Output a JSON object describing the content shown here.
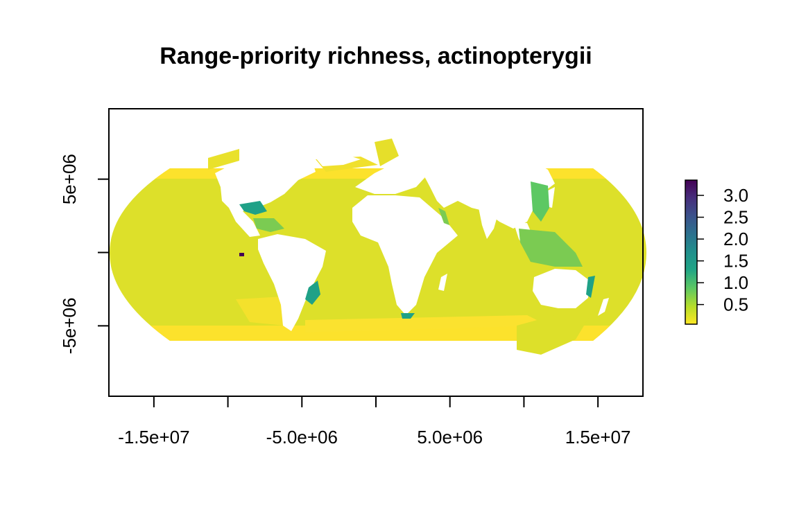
{
  "chart_data": {
    "type": "heatmap",
    "title": "Range-priority richness, actinopterygii",
    "xlabel": "",
    "ylabel": "",
    "x_ticks": [
      {
        "value": -15000000,
        "label": "-1.5e+07"
      },
      {
        "value": -10000000,
        "label": ""
      },
      {
        "value": -5000000,
        "label": "-5.0e+06"
      },
      {
        "value": 0,
        "label": ""
      },
      {
        "value": 5000000,
        "label": "5.0e+06"
      },
      {
        "value": 10000000,
        "label": ""
      },
      {
        "value": 15000000,
        "label": "1.5e+07"
      }
    ],
    "y_ticks": [
      {
        "value": 5000000,
        "label": "5e+06"
      },
      {
        "value": 0,
        "label": ""
      },
      {
        "value": -5000000,
        "label": "-5e+06"
      }
    ],
    "xlim": [
      -18040000,
      18040000
    ],
    "ylim": [
      -9800000,
      9800000
    ],
    "projection_extent_x": [
      -18040000,
      18040000
    ],
    "projection_extent_y": [
      -8400000,
      8400000
    ],
    "legend": {
      "position": "right",
      "range": [
        0.05,
        3.35
      ],
      "ticks": [
        {
          "value": 0.5,
          "label": "0.5"
        },
        {
          "value": 1.0,
          "label": "1.0"
        },
        {
          "value": 1.5,
          "label": "1.5"
        },
        {
          "value": 2.0,
          "label": "2.0"
        },
        {
          "value": 2.5,
          "label": "2.5"
        },
        {
          "value": 3.0,
          "label": "3.0"
        }
      ],
      "colors": [
        "#FDE725",
        "#B8DE29",
        "#5DC863",
        "#20A486",
        "#21908C",
        "#2C728E",
        "#3B528B",
        "#472D7B",
        "#440154"
      ]
    },
    "ocean_background_value": 0.3,
    "colors": {
      "ocean_base": "#DDE02A",
      "polar_band": "#FCE22C",
      "coastal_mid": "#7BCB52",
      "coastal_high": "#1FA187",
      "peak": "#440154",
      "land": "#FFFFFF"
    },
    "grid": false
  }
}
